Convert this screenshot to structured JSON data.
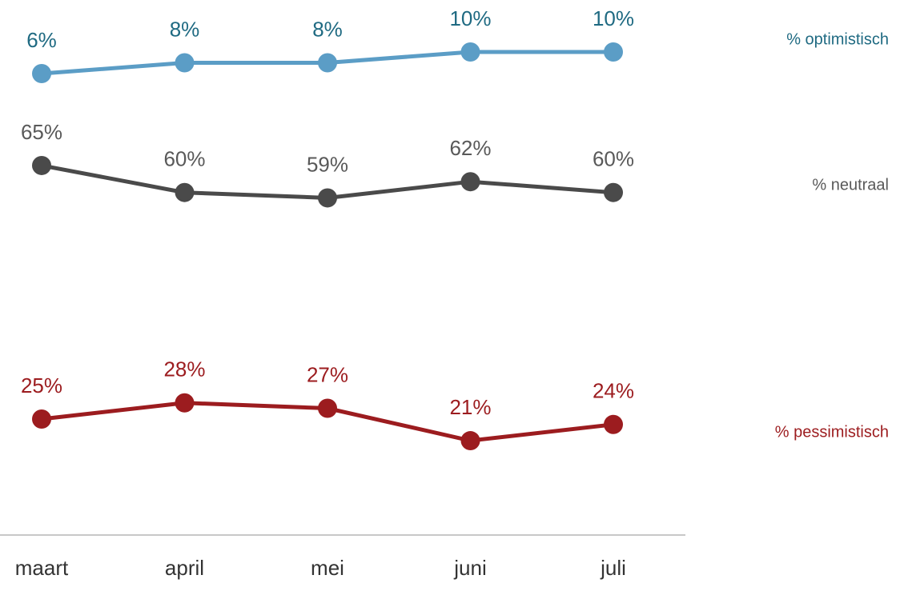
{
  "chart_data": {
    "type": "line",
    "categories": [
      "maart",
      "april",
      "mei",
      "juni",
      "juli"
    ],
    "series": [
      {
        "name": "% optimistisch",
        "color": "#5b9dc6",
        "label_color": "#1f6a82",
        "values": [
          6,
          8,
          8,
          10,
          10
        ],
        "value_labels": [
          "6%",
          "8%",
          "8%",
          "10%",
          "10%"
        ],
        "ylim": [
          0,
          14
        ]
      },
      {
        "name": "% neutraal",
        "color": "#4a4a4a",
        "label_color": "#595959",
        "values": [
          65,
          60,
          59,
          62,
          60
        ],
        "value_labels": [
          "65%",
          "60%",
          "59%",
          "62%",
          "60%"
        ],
        "ylim": [
          50,
          70
        ]
      },
      {
        "name": "% pessimistisch",
        "color": "#9c1c1f",
        "label_color": "#9c1c1f",
        "values": [
          25,
          28,
          27,
          21,
          24
        ],
        "value_labels": [
          "25%",
          "28%",
          "27%",
          "21%",
          "24%"
        ],
        "ylim": [
          10,
          35
        ]
      }
    ]
  }
}
